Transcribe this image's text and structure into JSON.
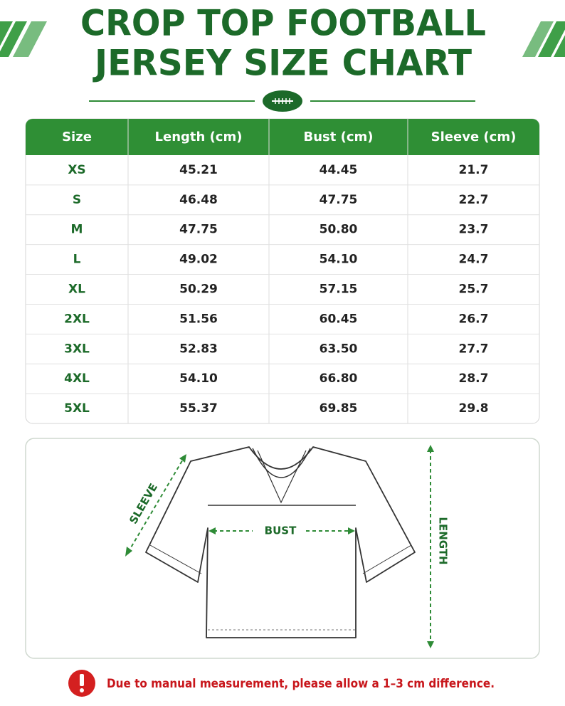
{
  "header": {
    "title_lines": [
      "CROP TOP FOOTBALL",
      "JERSEY SIZE CHART"
    ]
  },
  "table": {
    "columns": [
      "Size",
      "Length (cm)",
      "Bust (cm)",
      "Sleeve (cm)"
    ],
    "rows": [
      [
        "XS",
        "45.21",
        "44.45",
        "21.7"
      ],
      [
        "S",
        "46.48",
        "47.75",
        "22.7"
      ],
      [
        "M",
        "47.75",
        "50.80",
        "23.7"
      ],
      [
        "L",
        "49.02",
        "54.10",
        "24.7"
      ],
      [
        "XL",
        "50.29",
        "57.15",
        "25.7"
      ],
      [
        "2XL",
        "51.56",
        "60.45",
        "26.7"
      ],
      [
        "3XL",
        "52.83",
        "63.50",
        "27.7"
      ],
      [
        "4XL",
        "54.10",
        "66.80",
        "28.7"
      ],
      [
        "5XL",
        "55.37",
        "69.85",
        "29.8"
      ]
    ]
  },
  "diagram": {
    "labels": {
      "sleeve": "SLEEVE",
      "bust": "BUST",
      "length": "LENGTH"
    }
  },
  "note": "Due to manual measurement, please allow a 1–3 cm difference."
}
